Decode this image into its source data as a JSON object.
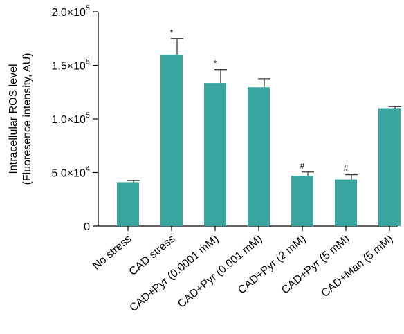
{
  "chart_data": {
    "type": "bar",
    "ylabel_line1": "Intracellular ROS level",
    "ylabel_line2": "(Fluoresence intensity, AU)",
    "ylim": [
      0,
      200000
    ],
    "yticks": [
      {
        "value": 0,
        "mantissa": "0",
        "exp": ""
      },
      {
        "value": 50000,
        "mantissa": "5.0×10",
        "exp": "4"
      },
      {
        "value": 100000,
        "mantissa": "1.0×10",
        "exp": "5"
      },
      {
        "value": 150000,
        "mantissa": "1.5×10",
        "exp": "5"
      },
      {
        "value": 200000,
        "mantissa": "2.0×10",
        "exp": "5"
      }
    ],
    "categories": [
      "No stress",
      "CAD stress",
      "CAD+Pyr (0.0001 mM)",
      "CAD+Pyr (0.001 mM)",
      "CAD+Pyr (2 mM)",
      "CAD+Pyr (5 mM)",
      "CAD+Man (5 mM)"
    ],
    "values": [
      41000,
      160000,
      133500,
      129500,
      47000,
      43500,
      110000
    ],
    "errors": [
      1500,
      15000,
      12500,
      8000,
      3500,
      4500,
      1500
    ],
    "markers": [
      "",
      "*",
      "*",
      "",
      "#",
      "#",
      ""
    ],
    "bar_color": "#3aa6a0",
    "grid": false,
    "legend": "none"
  }
}
